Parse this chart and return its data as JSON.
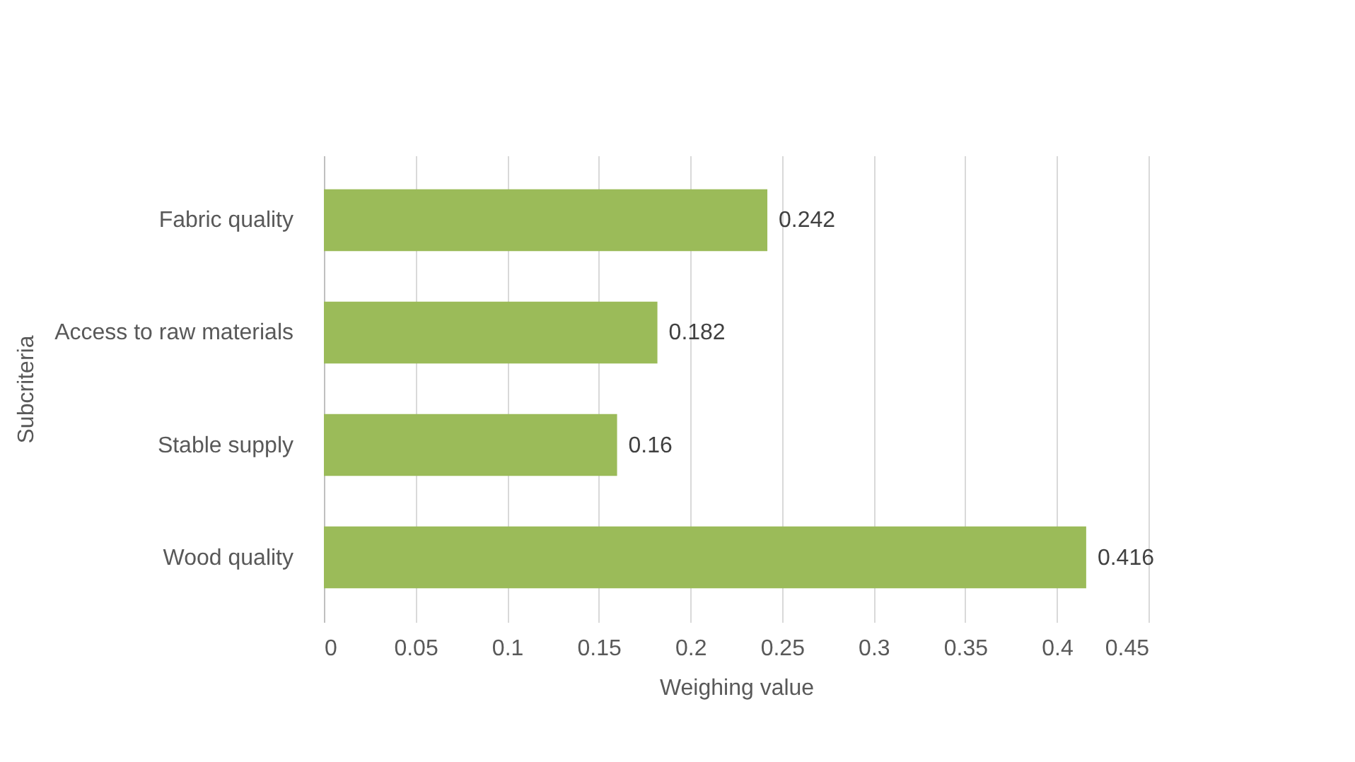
{
  "chart_data": {
    "type": "bar",
    "orientation": "horizontal",
    "categories": [
      "Fabric quality",
      "Access to raw materials",
      "Stable supply",
      "Wood quality"
    ],
    "values": [
      0.242,
      0.182,
      0.16,
      0.416
    ],
    "color": "#9bbb59",
    "xlabel": "Weighing value",
    "ylabel": "Subcriteria",
    "xlim": [
      0,
      0.45
    ],
    "xticks": [
      0,
      0.05,
      0.1,
      0.15,
      0.2,
      0.25,
      0.3,
      0.35,
      0.4,
      0.45
    ],
    "grid": "x",
    "data_labels": true
  }
}
